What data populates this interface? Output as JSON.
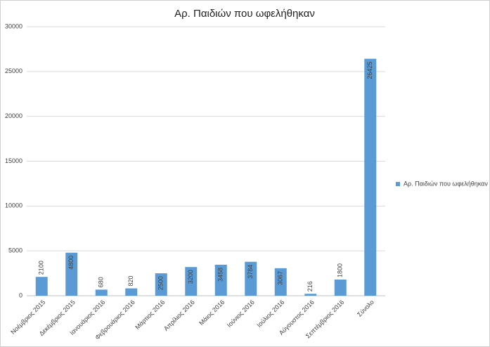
{
  "chart_data": {
    "type": "bar",
    "title": "Αρ. Παιδιών που ωφελήθηκαν",
    "categories": [
      "Νοέμβριος 2015",
      "Δεκέμβριος 2015",
      "Ιανουάριος 2016",
      "Φεβρουάριος 2016",
      "Μάρτιος 2016",
      "Απρίλιος 2016",
      "Μάιος 2016",
      "Ιούνιος 2016",
      "Ιούλιος 2016",
      "Αύγουστος 2016",
      "Σεπτέμβριος 2016",
      "Σύνολο"
    ],
    "series": [
      {
        "name": "Αρ. Παιδιών που ωφελήθηκαν",
        "color": "#5b9bd5",
        "values": [
          2100,
          4800,
          680,
          820,
          2500,
          3200,
          3458,
          3784,
          3067,
          216,
          1800,
          26425
        ]
      }
    ],
    "ylim": [
      0,
      30000
    ],
    "yticks": [
      0,
      5000,
      10000,
      15000,
      20000,
      25000,
      30000
    ],
    "grid": true,
    "legend": "right",
    "data_labels": true
  }
}
